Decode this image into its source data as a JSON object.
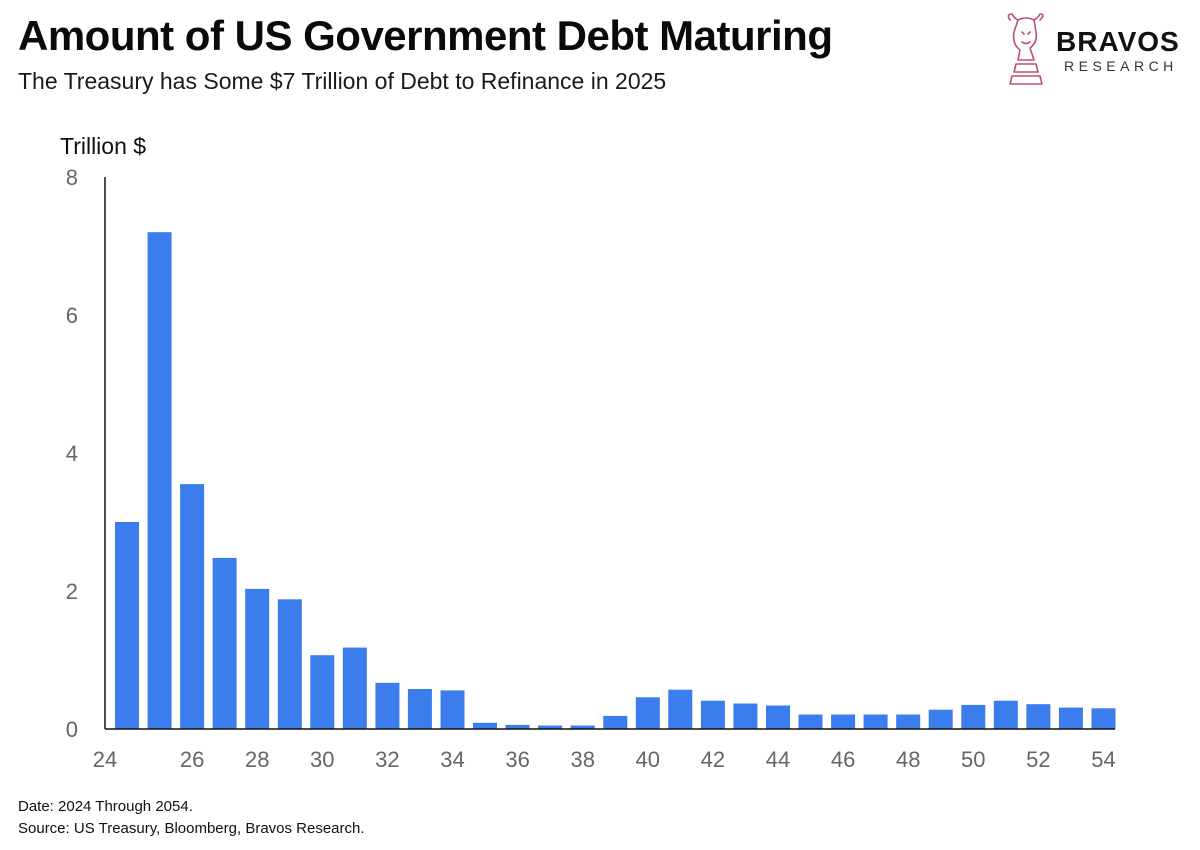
{
  "header": {
    "title": "Amount of US Government Debt Maturing",
    "subtitle": "The Treasury has Some $7 Trillion of Debt to Refinance in 2025"
  },
  "logo": {
    "word": "BRAVOS",
    "sub": "RESEARCH",
    "accent_color": "#c0506a"
  },
  "footer": {
    "line1": "Date: 2024 Through 2054.",
    "line2": "Source: US Treasury, Bloomberg, Bravos Research."
  },
  "chart_data": {
    "type": "bar",
    "title": "Amount of US Government Debt Maturing",
    "subtitle": "The Treasury has Some $7 Trillion of Debt to Refinance in 2025",
    "ylabel": "Trillion $",
    "xlabel": "",
    "x": [
      24,
      25,
      26,
      27,
      28,
      29,
      30,
      31,
      32,
      33,
      34,
      35,
      36,
      37,
      38,
      39,
      40,
      41,
      42,
      43,
      44,
      45,
      46,
      47,
      48,
      49,
      50,
      51,
      52,
      53,
      54
    ],
    "values": [
      3.0,
      7.2,
      3.55,
      2.48,
      2.03,
      1.88,
      1.07,
      1.18,
      0.67,
      0.58,
      0.56,
      0.09,
      0.06,
      0.05,
      0.05,
      0.19,
      0.46,
      0.57,
      0.41,
      0.37,
      0.34,
      0.21,
      0.21,
      0.21,
      0.21,
      0.28,
      0.35,
      0.41,
      0.36,
      0.31,
      0.3
    ],
    "x_ticks": [
      "24",
      "26",
      "28",
      "30",
      "32",
      "34",
      "36",
      "38",
      "40",
      "42",
      "44",
      "46",
      "48",
      "50",
      "52",
      "54"
    ],
    "y_ticks": [
      0,
      2,
      4,
      6,
      8
    ],
    "ylim": [
      0,
      8
    ],
    "grid": false,
    "bar_color": "#3b7ded"
  }
}
